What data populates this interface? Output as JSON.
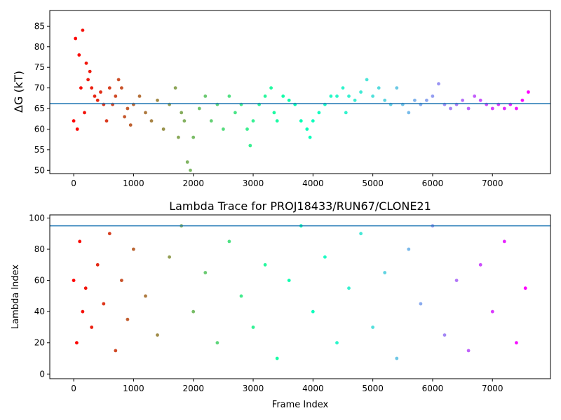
{
  "chart_data": [
    {
      "type": "scatter",
      "title": "",
      "xlabel": "",
      "ylabel": "ΔG (kT)",
      "xlim": [
        -400,
        7970
      ],
      "ylim": [
        49.2,
        88.8
      ],
      "x_ticks": [
        0,
        1000,
        2000,
        3000,
        4000,
        5000,
        6000,
        7000
      ],
      "y_ticks": [
        50,
        55,
        60,
        65,
        70,
        75,
        80,
        85
      ],
      "hline": 66.2,
      "hline_color": "#1f77b4",
      "colormap": "rainbow (red at start to violet at end)",
      "series": [
        {
          "x": [
            0,
            30,
            60,
            90,
            120,
            150,
            180,
            210,
            240,
            270,
            300,
            350,
            400,
            450,
            500,
            550,
            600,
            650,
            700,
            750,
            800,
            850,
            900,
            950,
            1000,
            1100,
            1200,
            1300,
            1400,
            1500,
            1600,
            1700,
            1750,
            1800,
            1850,
            1900,
            1950,
            2000,
            2100,
            2200,
            2300,
            2400,
            2500,
            2600,
            2700,
            2800,
            2900,
            2950,
            3000,
            3100,
            3200,
            3300,
            3350,
            3400,
            3500,
            3600,
            3700,
            3800,
            3900,
            3950,
            4000,
            4100,
            4200,
            4300,
            4400,
            4500,
            4550,
            4600,
            4700,
            4800,
            4900,
            5000,
            5100,
            5200,
            5300,
            5400,
            5500,
            5600,
            5700,
            5800,
            5900,
            6000,
            6100,
            6200,
            6300,
            6400,
            6500,
            6600,
            6700,
            6800,
            6900,
            7000,
            7100,
            7200,
            7300,
            7400,
            7500,
            7600
          ],
          "y": [
            62,
            82,
            60,
            78,
            70,
            84,
            64,
            76,
            72,
            74,
            70,
            68,
            67,
            69,
            66,
            62,
            70,
            66,
            68,
            72,
            70,
            63,
            65,
            61,
            66,
            68,
            64,
            62,
            67,
            60,
            66,
            70,
            58,
            64,
            62,
            52,
            50,
            58,
            65,
            68,
            62,
            66,
            60,
            68,
            64,
            66,
            60,
            56,
            62,
            66,
            68,
            70,
            64,
            62,
            68,
            67,
            66,
            62,
            60,
            58,
            62,
            64,
            66,
            68,
            68,
            70,
            64,
            68,
            67,
            69,
            72,
            68,
            70,
            67,
            66,
            70,
            66,
            64,
            67,
            66,
            67,
            68,
            71,
            66,
            65,
            66,
            67,
            65,
            68,
            67,
            66,
            65,
            66,
            65,
            66,
            65,
            67,
            69
          ]
        }
      ]
    },
    {
      "type": "scatter",
      "title": "Lambda Trace for PROJ18433/RUN67/CLONE21",
      "xlabel": "Frame Index",
      "ylabel": "Lambda Index",
      "xlim": [
        -400,
        7970
      ],
      "ylim": [
        -3,
        102
      ],
      "x_ticks": [
        0,
        1000,
        2000,
        3000,
        4000,
        5000,
        6000,
        7000
      ],
      "y_ticks": [
        0,
        20,
        40,
        60,
        80,
        100
      ],
      "hline": 95,
      "hline_color": "#1f77b4",
      "colormap": "rainbow (red at start to violet at end)",
      "series": [
        {
          "x": [
            0,
            50,
            100,
            150,
            200,
            300,
            400,
            500,
            600,
            700,
            800,
            900,
            1000,
            1200,
            1400,
            1600,
            1800,
            2000,
            2200,
            2400,
            2600,
            2800,
            3000,
            3200,
            3400,
            3600,
            3800,
            4000,
            4200,
            4400,
            4600,
            4800,
            5000,
            5200,
            5400,
            5600,
            5800,
            6000,
            6200,
            6400,
            6600,
            6800,
            7000,
            7200,
            7400,
            7550
          ],
          "y": [
            60,
            20,
            85,
            40,
            55,
            30,
            70,
            45,
            90,
            15,
            60,
            35,
            80,
            50,
            25,
            75,
            95,
            40,
            65,
            20,
            85,
            50,
            30,
            70,
            10,
            60,
            95,
            40,
            75,
            20,
            55,
            90,
            30,
            65,
            10,
            80,
            45,
            95,
            25,
            60,
            15,
            70,
            40,
            85,
            20,
            55
          ]
        }
      ]
    }
  ]
}
